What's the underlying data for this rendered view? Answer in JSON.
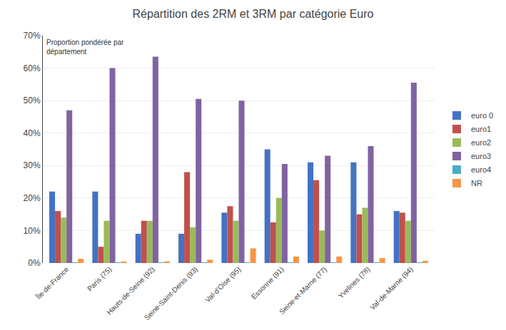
{
  "chart_data": {
    "type": "bar",
    "title": "Répartition des 2RM et 3RM par catégorie Euro",
    "annotation": "Proportion pondérée par\ndépartement",
    "categories": [
      "Île-de-France",
      "Paris (75)",
      "Hauts-de-Seine (92)",
      "Seine-Saint-Denis (93)",
      "Val-d'Oise (95)",
      "Essonne (91)",
      "Seine-et-Marne (77)",
      "Yvelines (78)",
      "Val-de-Marne (94)"
    ],
    "series": [
      {
        "name": "euro 0",
        "color": "#4472C4",
        "values": [
          0.22,
          0.22,
          0.09,
          0.09,
          0.155,
          0.35,
          0.31,
          0.31,
          0.16
        ]
      },
      {
        "name": "euro1",
        "color": "#C0504D",
        "values": [
          0.16,
          0.05,
          0.13,
          0.28,
          0.175,
          0.125,
          0.255,
          0.15,
          0.155
        ]
      },
      {
        "name": "euro2",
        "color": "#9BBB59",
        "values": [
          0.14,
          0.13,
          0.13,
          0.11,
          0.13,
          0.2,
          0.1,
          0.17,
          0.13
        ]
      },
      {
        "name": "euro3",
        "color": "#8064A2",
        "values": [
          0.47,
          0.6,
          0.635,
          0.505,
          0.5,
          0.305,
          0.33,
          0.36,
          0.555
        ]
      },
      {
        "name": "euro4",
        "color": "#4BACC6",
        "values": [
          0.001,
          0.001,
          0.001,
          0.001,
          0.001,
          0.001,
          0.001,
          0.001,
          0.001
        ]
      },
      {
        "name": "NR",
        "color": "#F79646",
        "values": [
          0.013,
          0.004,
          0.005,
          0.01,
          0.045,
          0.02,
          0.02,
          0.015,
          0.007
        ]
      }
    ],
    "ylim": [
      0.0,
      0.7
    ],
    "yticks": [
      {
        "value": 0.0,
        "label": "0%"
      },
      {
        "value": 0.1,
        "label": "10%"
      },
      {
        "value": 0.2,
        "label": "20%"
      },
      {
        "value": 0.3,
        "label": "30%"
      },
      {
        "value": 0.4,
        "label": "40%"
      },
      {
        "value": 0.5,
        "label": "50%"
      },
      {
        "value": 0.6,
        "label": "60%"
      },
      {
        "value": 0.7,
        "label": "70%"
      }
    ],
    "grid": true,
    "legend": "right"
  }
}
